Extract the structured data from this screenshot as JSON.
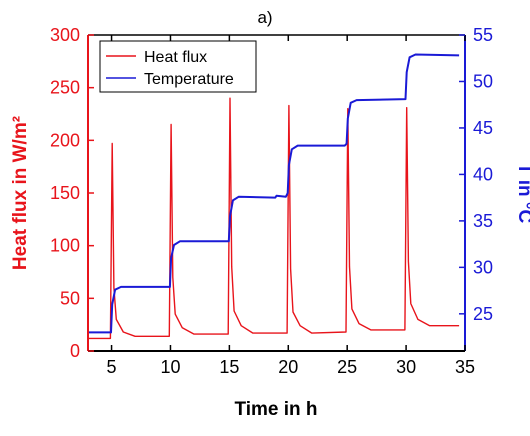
{
  "chart_data": {
    "type": "line",
    "panel_label": "a)",
    "xlabel": "Time in h",
    "ylabel_left": "Heat flux in W/m²",
    "ylabel_right": "T in °C",
    "xlim": [
      3,
      35
    ],
    "ylim_left": [
      0,
      300
    ],
    "ylim_right": [
      21,
      55
    ],
    "x_ticks": [
      5,
      10,
      15,
      20,
      25,
      30,
      35
    ],
    "y_left_ticks": [
      0,
      50,
      100,
      150,
      200,
      250,
      300
    ],
    "y_right_ticks": [
      25,
      30,
      35,
      40,
      45,
      50,
      55
    ],
    "legend_position": "top-left",
    "grid": false,
    "colors": {
      "heat_flux": "#e8141b",
      "temperature": "#1a1ad6",
      "axis_left": "#e8141b",
      "axis_right": "#1a1ad6",
      "axis_bottom": "#000000"
    },
    "series": [
      {
        "name": "Heat flux",
        "axis": "left",
        "x": [
          3.0,
          4.9,
          5.05,
          5.2,
          5.4,
          6.0,
          7.0,
          9.9,
          10.05,
          10.2,
          10.4,
          11.0,
          12.0,
          14.9,
          15.05,
          15.2,
          15.4,
          16.0,
          17.0,
          19.9,
          20.05,
          20.2,
          20.4,
          21.0,
          22.0,
          24.9,
          25.05,
          25.2,
          25.4,
          26.0,
          27.0,
          29.9,
          30.05,
          30.2,
          30.4,
          31.0,
          32.0,
          34.5
        ],
        "y": [
          12,
          12,
          197,
          60,
          30,
          18,
          14,
          14,
          215,
          70,
          35,
          22,
          16,
          16,
          240,
          80,
          38,
          24,
          17,
          17,
          233,
          78,
          37,
          24,
          17,
          18,
          230,
          80,
          40,
          26,
          20,
          20,
          231,
          85,
          45,
          30,
          24,
          24
        ]
      },
      {
        "name": "Temperature",
        "axis": "right",
        "x": [
          3.0,
          4.95,
          5.05,
          5.3,
          5.8,
          9.95,
          10.05,
          10.3,
          10.8,
          14.95,
          15.05,
          15.3,
          15.8,
          18.9,
          19.0,
          19.8,
          19.95,
          20.05,
          20.3,
          20.8,
          24.8,
          24.95,
          25.05,
          25.3,
          25.8,
          29.95,
          30.05,
          30.3,
          30.8,
          34.5
        ],
        "y": [
          23.0,
          23.0,
          26.0,
          27.6,
          27.9,
          27.9,
          31.0,
          32.4,
          32.8,
          32.8,
          35.5,
          37.2,
          37.6,
          37.5,
          37.7,
          37.6,
          38.0,
          41.0,
          42.7,
          43.1,
          43.1,
          43.3,
          46.0,
          47.7,
          48.0,
          48.1,
          51.0,
          52.6,
          52.9,
          52.8
        ]
      }
    ]
  }
}
